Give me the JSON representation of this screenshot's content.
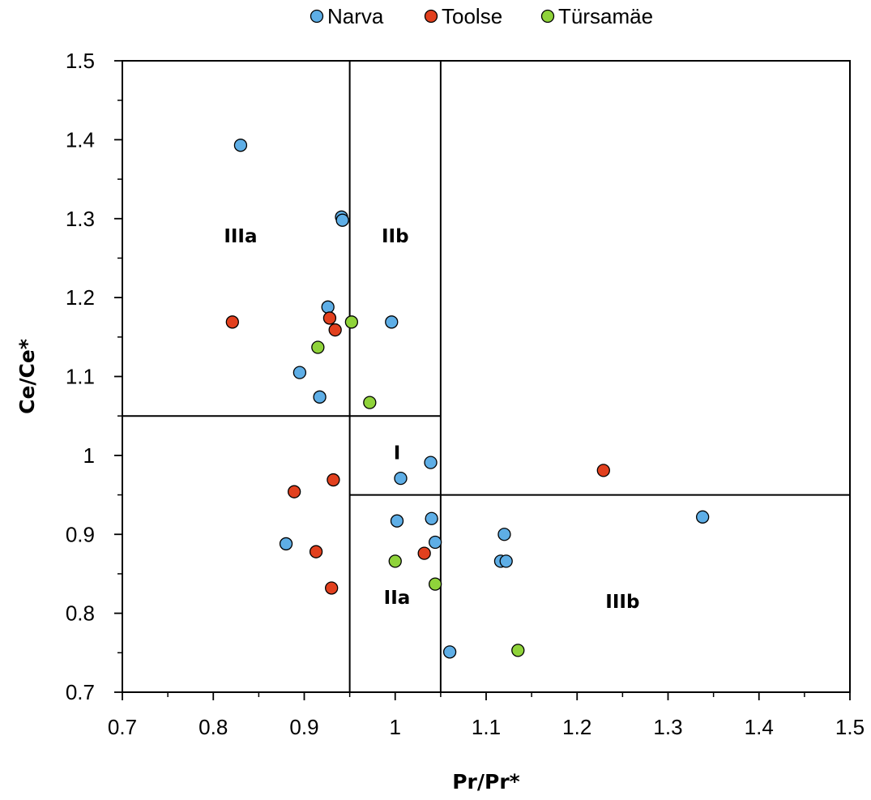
{
  "chart_data": {
    "type": "scatter",
    "xlabel": "Pr/Pr*",
    "ylabel": "Ce/Ce*",
    "xlim": [
      0.7,
      1.5
    ],
    "ylim": [
      0.7,
      1.5
    ],
    "x_ticks": [
      "0.7",
      "0.8",
      "0.9",
      "1",
      "1.1",
      "1.2",
      "1.3",
      "1.4",
      "1.5"
    ],
    "y_ticks": [
      "0.7",
      "0.8",
      "0.9",
      "1",
      "1.1",
      "1.2",
      "1.3",
      "1.4",
      "1.5"
    ],
    "x_minor_step": 0.05,
    "y_minor_step": 0.05,
    "grid": false,
    "legend_position": "top-center",
    "region_boundaries": {
      "vertical": [
        {
          "x": 0.95,
          "y_from": 0.7,
          "y_to": 1.5
        },
        {
          "x": 1.05,
          "y_from": 0.7,
          "y_to": 1.5
        }
      ],
      "horizontal": [
        {
          "y": 1.05,
          "x_from": 0.7,
          "x_to": 1.05
        },
        {
          "y": 0.95,
          "x_from": 0.95,
          "x_to": 1.5
        }
      ]
    },
    "region_labels": [
      {
        "text": "IIIa",
        "x": 0.83,
        "y": 1.27
      },
      {
        "text": "IIb",
        "x": 1.0,
        "y": 1.27
      },
      {
        "text": "I",
        "x": 1.002,
        "y": 0.995
      },
      {
        "text": "IIa",
        "x": 1.002,
        "y": 0.812
      },
      {
        "text": "IIIb",
        "x": 1.25,
        "y": 0.807
      }
    ],
    "series": [
      {
        "name": "Narva",
        "color": "#5eaee6",
        "points": [
          [
            0.83,
            1.393
          ],
          [
            0.941,
            1.302
          ],
          [
            0.942,
            1.298
          ],
          [
            0.926,
            1.188
          ],
          [
            0.996,
            1.169
          ],
          [
            0.895,
            1.105
          ],
          [
            0.917,
            1.074
          ],
          [
            1.039,
            0.991
          ],
          [
            1.006,
            0.971
          ],
          [
            1.002,
            0.917
          ],
          [
            1.04,
            0.92
          ],
          [
            1.044,
            0.89
          ],
          [
            0.88,
            0.888
          ],
          [
            1.12,
            0.9
          ],
          [
            1.116,
            0.866
          ],
          [
            1.122,
            0.866
          ],
          [
            1.338,
            0.922
          ],
          [
            1.06,
            0.751
          ]
        ]
      },
      {
        "name": "Toolse",
        "color": "#e2401e",
        "points": [
          [
            0.821,
            1.169
          ],
          [
            0.928,
            1.174
          ],
          [
            0.934,
            1.159
          ],
          [
            0.889,
            0.954
          ],
          [
            0.932,
            0.969
          ],
          [
            0.913,
            0.878
          ],
          [
            1.032,
            0.876
          ],
          [
            0.93,
            0.832
          ],
          [
            1.229,
            0.981
          ]
        ]
      },
      {
        "name": "Türsamäe",
        "color": "#8fd33a",
        "points": [
          [
            0.952,
            1.169
          ],
          [
            0.915,
            1.137
          ],
          [
            0.972,
            1.067
          ],
          [
            1.0,
            0.866
          ],
          [
            1.044,
            0.837
          ],
          [
            1.135,
            0.753
          ]
        ]
      }
    ]
  }
}
